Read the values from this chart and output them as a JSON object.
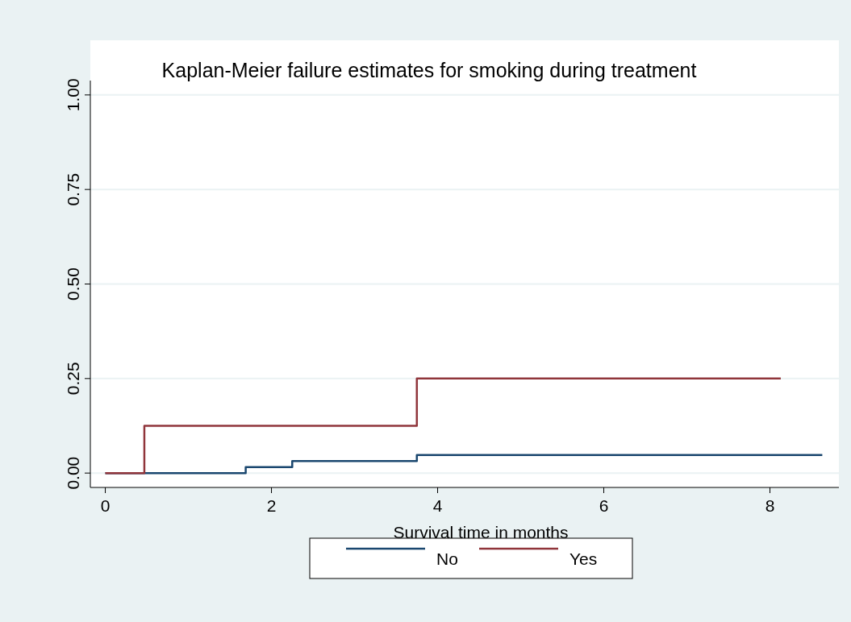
{
  "chart_data": {
    "type": "step",
    "title": "Kaplan-Meier failure estimates for smoking during treatment",
    "xlabel": "Survival time in months",
    "series": [
      {
        "name": "No",
        "color": "#1a476f",
        "x": [
          0,
          1.69,
          2.25,
          3.75,
          8.63
        ],
        "values": [
          0,
          0.016,
          0.032,
          0.048,
          0.048
        ]
      },
      {
        "name": "Yes",
        "color": "#90353b",
        "x": [
          0,
          0.47,
          3.75,
          8.13
        ],
        "values": [
          0,
          0.125,
          0.25,
          0.25
        ]
      }
    ],
    "xlim": [
      -0.18,
      8.83
    ],
    "xticks": [
      0,
      2,
      4,
      6,
      8
    ],
    "ylim": [
      -0.038,
      1.038
    ],
    "yticks": [
      {
        "value": 0,
        "label": "0.00"
      },
      {
        "value": 0.25,
        "label": "0.25"
      },
      {
        "value": 0.5,
        "label": "0.50"
      },
      {
        "value": 0.75,
        "label": "0.75"
      },
      {
        "value": 1,
        "label": "1.00"
      }
    ],
    "grid": "y",
    "legend": "bottom",
    "line_style": "solid"
  }
}
